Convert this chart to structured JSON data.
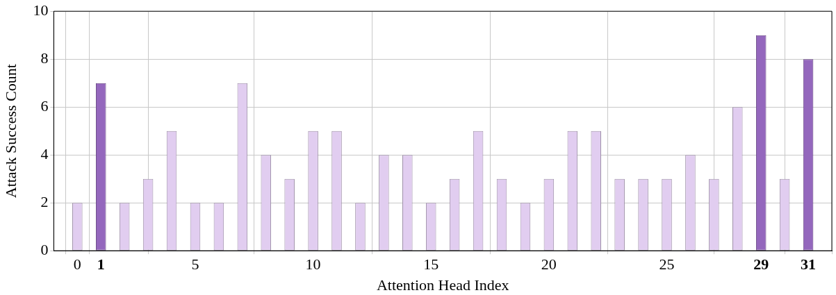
{
  "chart_data": {
    "type": "bar",
    "xlabel": "Attention Head Index",
    "ylabel": "Attack Success Count",
    "x": [
      0,
      1,
      2,
      3,
      4,
      5,
      6,
      7,
      8,
      9,
      10,
      11,
      12,
      13,
      14,
      15,
      16,
      17,
      18,
      19,
      20,
      21,
      22,
      23,
      24,
      25,
      26,
      27,
      28,
      29,
      30,
      31
    ],
    "values": [
      2,
      7,
      2,
      3,
      5,
      2,
      2,
      7,
      4,
      3,
      5,
      5,
      2,
      4,
      4,
      2,
      3,
      5,
      3,
      2,
      3,
      5,
      5,
      3,
      3,
      3,
      4,
      3,
      6,
      9,
      3,
      8
    ],
    "colors": [
      "#e1cdf0",
      "#9467bd",
      "#e1cdf0",
      "#e1cdf0",
      "#e1cdf0",
      "#e1cdf0",
      "#e1cdf0",
      "#e1cdf0",
      "#e1cdf0",
      "#e1cdf0",
      "#e1cdf0",
      "#e1cdf0",
      "#e1cdf0",
      "#e1cdf0",
      "#e1cdf0",
      "#e1cdf0",
      "#e1cdf0",
      "#e1cdf0",
      "#e1cdf0",
      "#e1cdf0",
      "#e1cdf0",
      "#e1cdf0",
      "#e1cdf0",
      "#e1cdf0",
      "#e1cdf0",
      "#e1cdf0",
      "#e1cdf0",
      "#e1cdf0",
      "#e1cdf0",
      "#9467bd",
      "#e1cdf0",
      "#9467bd"
    ],
    "xlim": [
      -1,
      32
    ],
    "xticks": [
      0,
      1,
      5,
      10,
      15,
      20,
      25,
      29,
      31
    ],
    "ylim": [
      0,
      10
    ],
    "yticks": [
      0,
      2,
      4,
      6,
      8,
      10
    ],
    "grid": true,
    "legend": false
  }
}
